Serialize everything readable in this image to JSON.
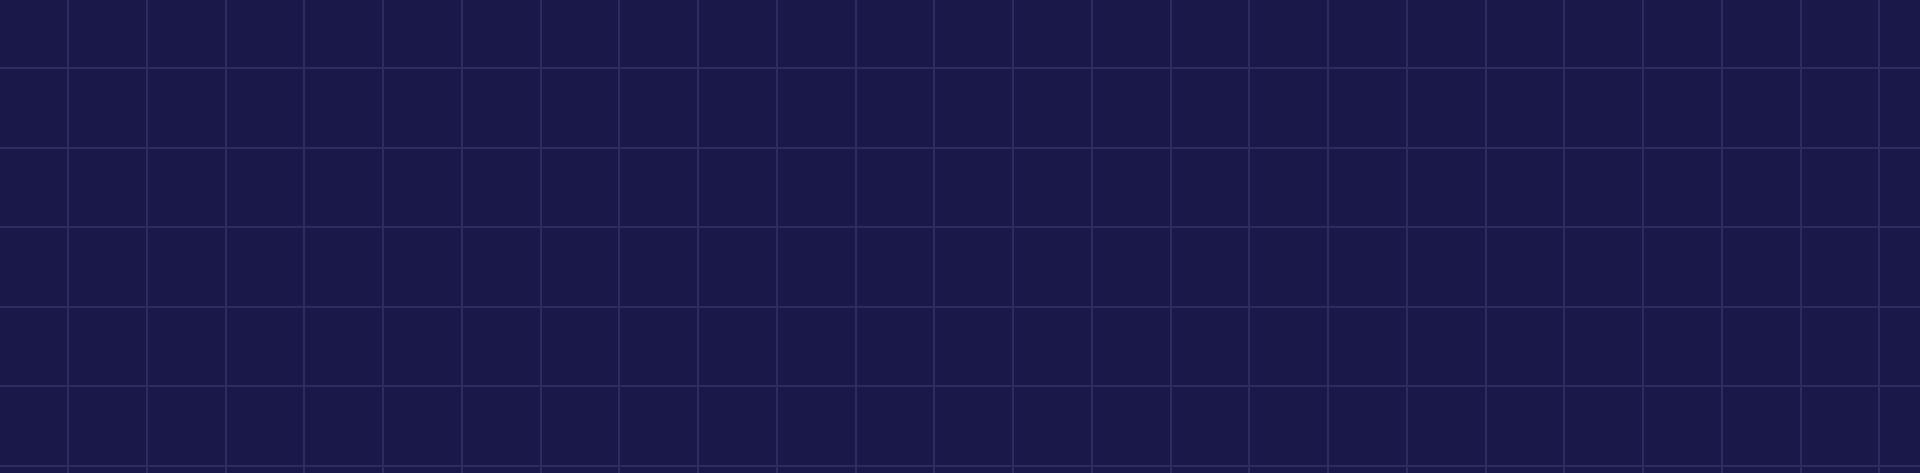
{
  "colors": {
    "background": "#1a1848",
    "grid_line": "#2c2d5e"
  },
  "pattern": "grid"
}
